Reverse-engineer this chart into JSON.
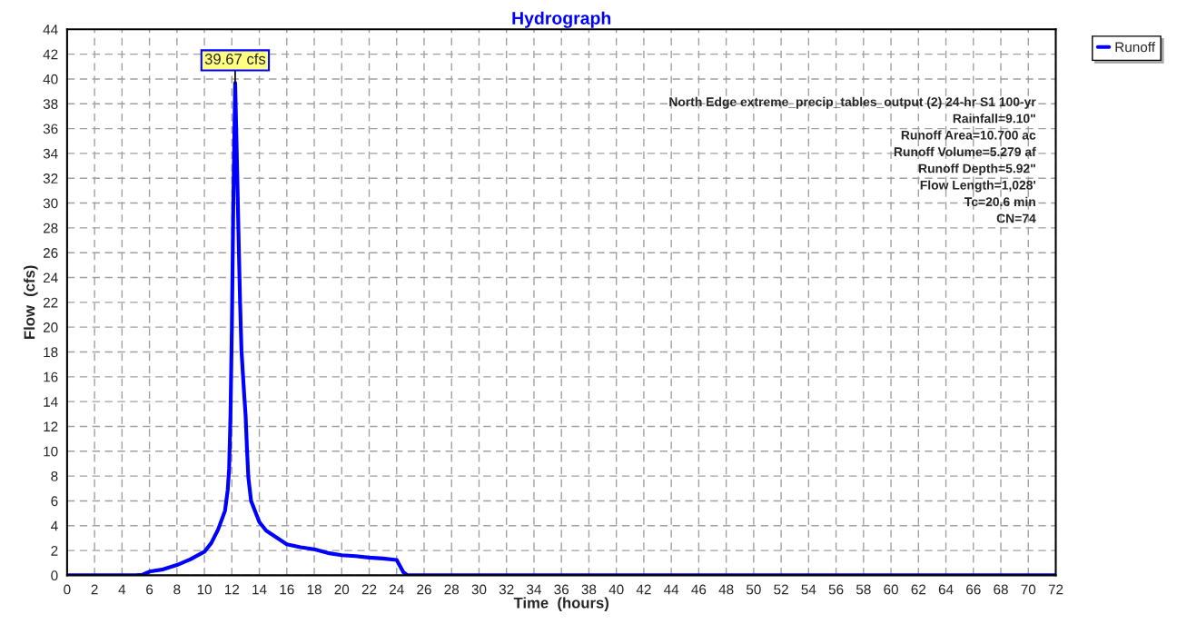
{
  "chart_data": {
    "type": "line",
    "title": "Hydrograph",
    "xlabel": "Time  (hours)",
    "ylabel": "Flow  (cfs)",
    "x": [
      0,
      5,
      5.5,
      6,
      7,
      8,
      9,
      10,
      10.5,
      11,
      11.5,
      11.7,
      11.8,
      11.9,
      12.0,
      12.1,
      12.24,
      12.4,
      12.5,
      12.6,
      12.7,
      12.9,
      13.0,
      13.1,
      13.2,
      13.4,
      14,
      14.5,
      16,
      17,
      18,
      19,
      20,
      21,
      22,
      23,
      24,
      24.5,
      24.8,
      72
    ],
    "series": [
      {
        "name": "Runoff",
        "color": "#0000ff",
        "values": [
          0,
          0,
          0.05,
          0.3,
          0.48,
          0.83,
          1.3,
          1.9,
          2.6,
          3.7,
          5.2,
          6.9,
          8.6,
          12.9,
          20,
          29.5,
          39.67,
          31.9,
          26.7,
          21.9,
          18.1,
          14.5,
          12.9,
          10.2,
          7.9,
          6.0,
          4.3,
          3.6,
          2.5,
          2.26,
          2.1,
          1.8,
          1.62,
          1.55,
          1.43,
          1.36,
          1.24,
          0.24,
          0,
          0
        ]
      }
    ],
    "xlim": [
      0,
      72
    ],
    "xticks": [
      0,
      2,
      4,
      6,
      8,
      10,
      12,
      14,
      16,
      18,
      20,
      22,
      24,
      26,
      28,
      30,
      32,
      34,
      36,
      38,
      40,
      42,
      44,
      46,
      48,
      50,
      52,
      54,
      56,
      58,
      60,
      62,
      64,
      66,
      68,
      70,
      72
    ],
    "ylim": [
      0,
      44
    ],
    "yticks": [
      0,
      2,
      4,
      6,
      8,
      10,
      12,
      14,
      16,
      18,
      20,
      22,
      24,
      26,
      28,
      30,
      32,
      34,
      36,
      38,
      40,
      42,
      44
    ],
    "grid": true,
    "legend": "top right",
    "line_style": "solid",
    "marker": "none",
    "annotations": [
      {
        "text": "39.67 cfs",
        "x": 12.24,
        "y": 39.67
      },
      "North Edge extreme_precip_tables_output (2) 24-hr S1 100-yr",
      "Rainfall=9.10\"",
      "Runoff Area=10.700 ac",
      "Runoff Volume=5.279 af",
      "Runoff Depth=5.92\"",
      "Flow Length=1,028'",
      "Tc=20.6 min",
      "CN=74"
    ]
  }
}
